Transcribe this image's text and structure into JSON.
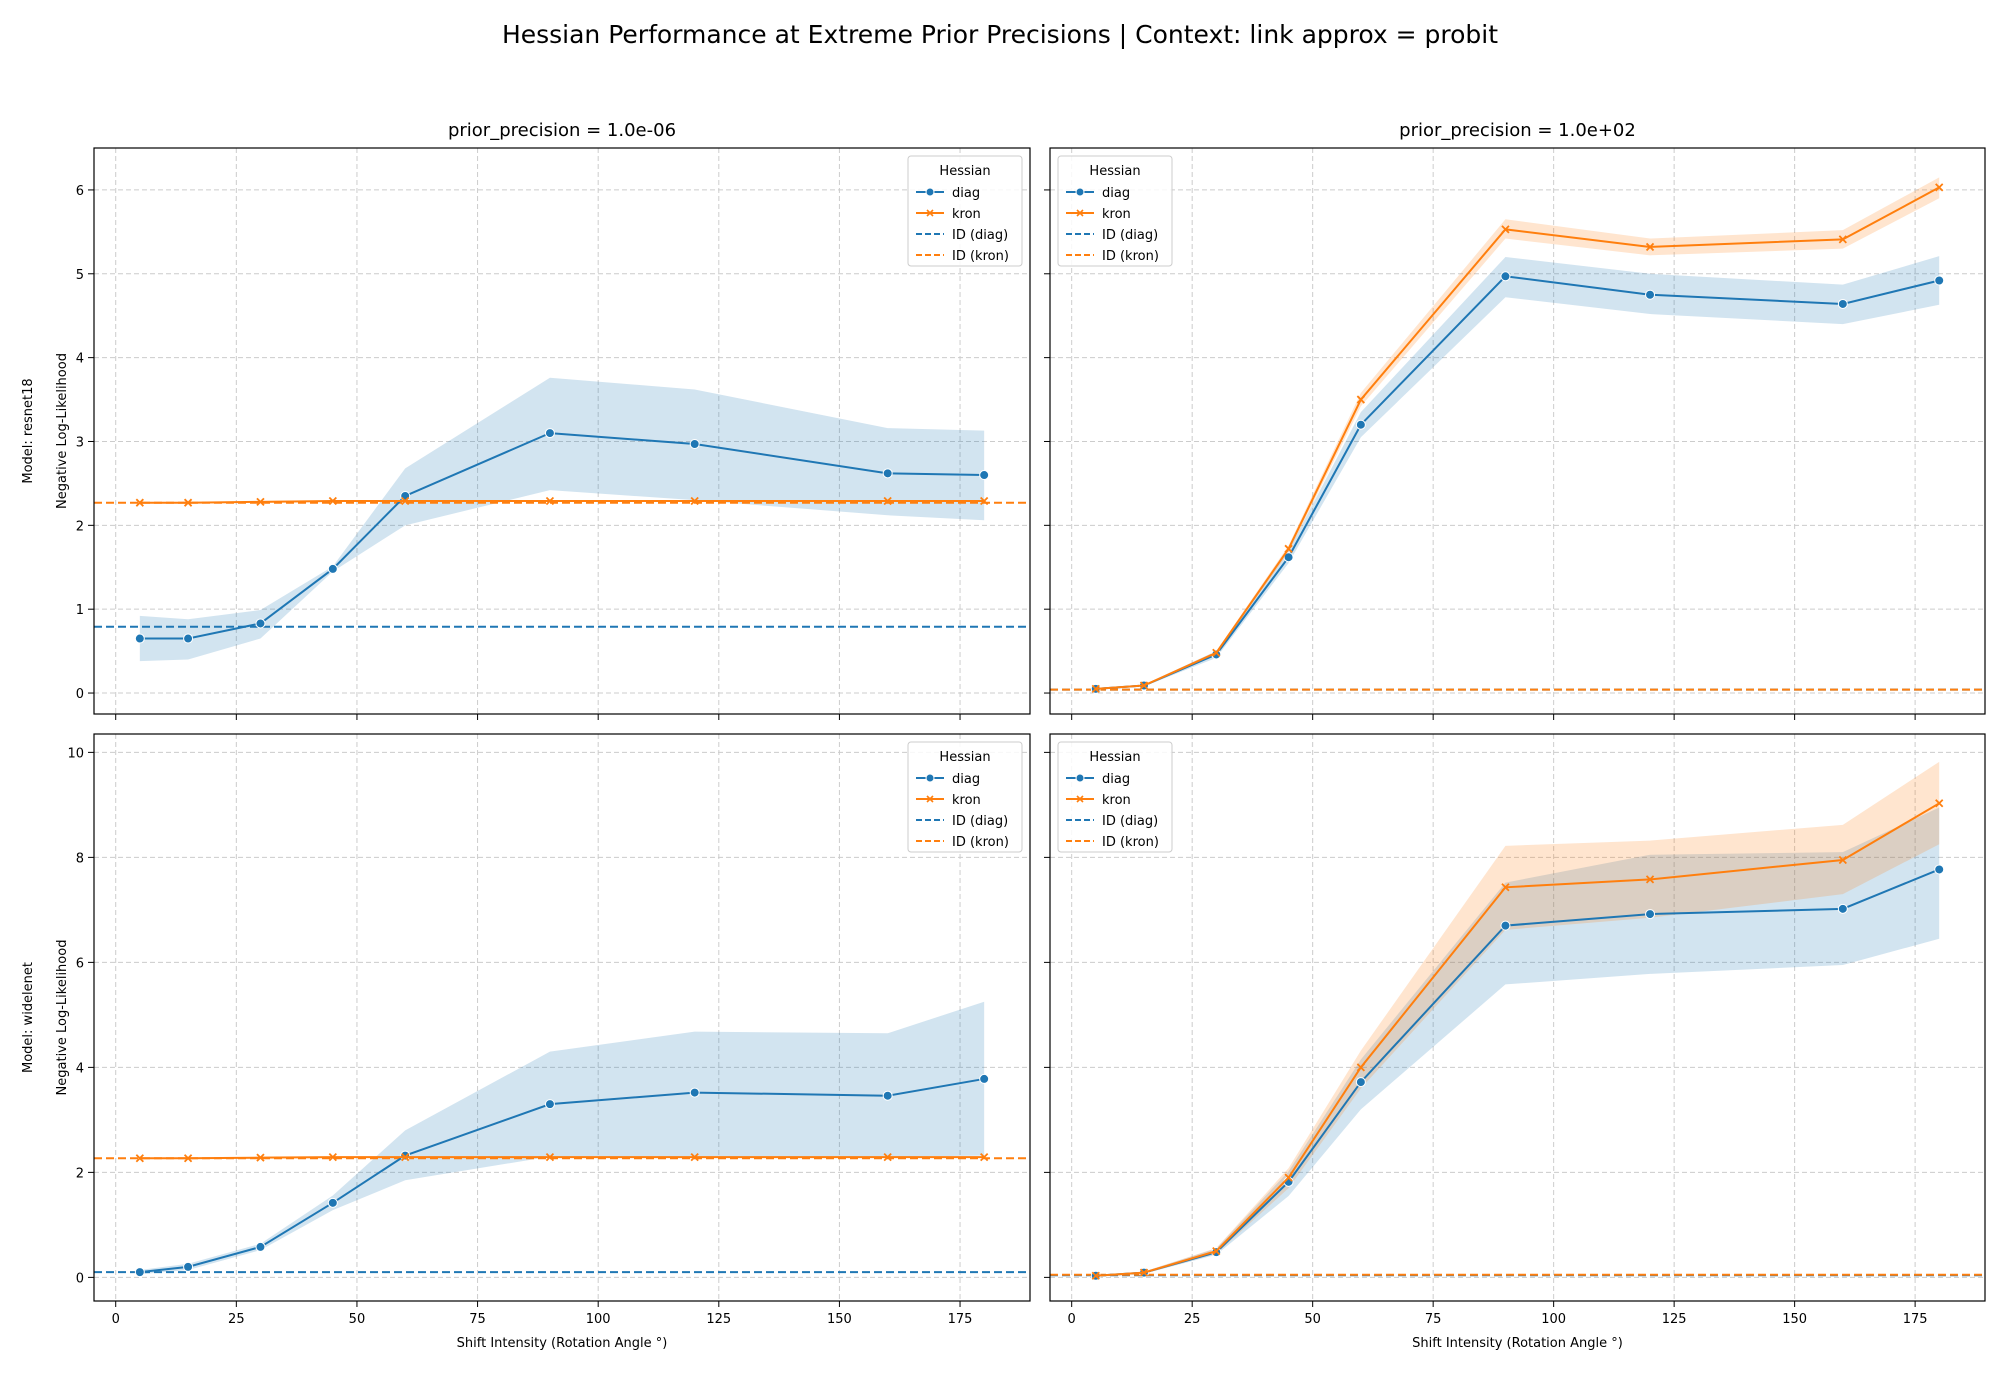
{
  "figure": {
    "title": "Hessian Performance at Extreme Prior Precisions | Context: link approx = probit"
  },
  "colors": {
    "diag": "#1f77b4",
    "kron": "#ff7f0e",
    "grid": "#cccccc",
    "axis": "#000000"
  },
  "chart_data": [
    {
      "type": "line",
      "title": "prior_precision = 1.0e-06",
      "row_label": "Model: resnet18",
      "xlabel": "",
      "ylabel": "Negative Log-Likelihood",
      "xlim": [
        -4.5,
        189.5
      ],
      "ylim": [
        -0.25,
        6.5
      ],
      "xticks": [
        0,
        25,
        50,
        75,
        100,
        125,
        150,
        175
      ],
      "yticks": [
        0,
        1,
        2,
        3,
        4,
        5,
        6
      ],
      "grid": true,
      "legend": {
        "title": "Hessian",
        "placement": "upper right",
        "entries": [
          "diag",
          "kron",
          "ID (diag)",
          "ID (kron)"
        ]
      },
      "x": [
        5,
        15,
        30,
        45,
        60,
        90,
        120,
        160,
        180
      ],
      "series": [
        {
          "name": "diag",
          "marker": "o",
          "values": [
            0.65,
            0.65,
            0.83,
            1.48,
            2.35,
            3.1,
            2.97,
            2.62,
            2.6
          ],
          "ci_low": [
            0.38,
            0.4,
            0.65,
            1.45,
            2.0,
            2.42,
            2.3,
            2.12,
            2.06
          ],
          "ci_high": [
            0.92,
            0.88,
            0.99,
            1.51,
            2.68,
            3.76,
            3.62,
            3.16,
            3.13
          ]
        },
        {
          "name": "kron",
          "marker": "x",
          "values": [
            2.27,
            2.27,
            2.28,
            2.29,
            2.29,
            2.29,
            2.29,
            2.29,
            2.29
          ],
          "ci_low": [
            2.26,
            2.26,
            2.27,
            2.28,
            2.28,
            2.28,
            2.28,
            2.28,
            2.28
          ],
          "ci_high": [
            2.28,
            2.28,
            2.29,
            2.3,
            2.3,
            2.3,
            2.3,
            2.3,
            2.3
          ]
        }
      ],
      "reference_lines": [
        {
          "name": "ID (diag)",
          "value": 0.79
        },
        {
          "name": "ID (kron)",
          "value": 2.27
        }
      ]
    },
    {
      "type": "line",
      "title": "prior_precision = 1.0e+02",
      "xlabel": "",
      "ylabel": "",
      "xlim": [
        -4.5,
        189.5
      ],
      "ylim": [
        -0.25,
        6.5
      ],
      "xticks": [
        0,
        25,
        50,
        75,
        100,
        125,
        150,
        175
      ],
      "yticks": [
        0,
        1,
        2,
        3,
        4,
        5,
        6
      ],
      "grid": true,
      "legend": {
        "title": "Hessian",
        "placement": "upper left",
        "entries": [
          "diag",
          "kron",
          "ID (diag)",
          "ID (kron)"
        ]
      },
      "x": [
        5,
        15,
        30,
        45,
        60,
        90,
        120,
        160,
        180
      ],
      "series": [
        {
          "name": "diag",
          "marker": "o",
          "values": [
            0.05,
            0.09,
            0.46,
            1.62,
            3.2,
            4.97,
            4.75,
            4.64,
            4.92
          ],
          "ci_low": [
            0.04,
            0.08,
            0.42,
            1.55,
            3.05,
            4.72,
            4.52,
            4.4,
            4.63
          ],
          "ci_high": [
            0.06,
            0.1,
            0.5,
            1.7,
            3.35,
            5.2,
            5.0,
            4.87,
            5.21
          ]
        },
        {
          "name": "kron",
          "marker": "x",
          "values": [
            0.05,
            0.09,
            0.48,
            1.72,
            3.5,
            5.53,
            5.32,
            5.41,
            6.03
          ],
          "ci_low": [
            0.04,
            0.08,
            0.46,
            1.68,
            3.42,
            5.42,
            5.22,
            5.3,
            5.9
          ],
          "ci_high": [
            0.06,
            0.1,
            0.5,
            1.76,
            3.58,
            5.65,
            5.42,
            5.52,
            6.15
          ]
        }
      ],
      "reference_lines": [
        {
          "name": "ID (diag)",
          "value": 0.04
        },
        {
          "name": "ID (kron)",
          "value": 0.04
        }
      ]
    },
    {
      "type": "line",
      "title": "",
      "row_label": "Model: widelenet",
      "xlabel": "Shift Intensity (Rotation Angle °)",
      "ylabel": "Negative Log-Likelihood",
      "xlim": [
        -4.5,
        189.5
      ],
      "ylim": [
        -0.45,
        10.35
      ],
      "xticks": [
        0,
        25,
        50,
        75,
        100,
        125,
        150,
        175
      ],
      "yticks": [
        0,
        2,
        4,
        6,
        8,
        10
      ],
      "grid": true,
      "legend": {
        "title": "Hessian",
        "placement": "upper right",
        "entries": [
          "diag",
          "kron",
          "ID (diag)",
          "ID (kron)"
        ]
      },
      "x": [
        5,
        15,
        30,
        45,
        60,
        90,
        120,
        160,
        180
      ],
      "series": [
        {
          "name": "diag",
          "marker": "o",
          "values": [
            0.1,
            0.2,
            0.58,
            1.42,
            2.32,
            3.3,
            3.52,
            3.46,
            3.78
          ],
          "ci_low": [
            0.06,
            0.14,
            0.52,
            1.28,
            1.85,
            2.3,
            2.3,
            2.3,
            2.32
          ],
          "ci_high": [
            0.14,
            0.26,
            0.64,
            1.56,
            2.8,
            4.3,
            4.68,
            4.65,
            5.25
          ]
        },
        {
          "name": "kron",
          "marker": "x",
          "values": [
            2.27,
            2.27,
            2.28,
            2.29,
            2.29,
            2.29,
            2.29,
            2.29,
            2.29
          ],
          "ci_low": [
            2.26,
            2.26,
            2.27,
            2.28,
            2.28,
            2.28,
            2.28,
            2.28,
            2.28
          ],
          "ci_high": [
            2.28,
            2.28,
            2.29,
            2.3,
            2.3,
            2.3,
            2.3,
            2.3,
            2.3
          ]
        }
      ],
      "reference_lines": [
        {
          "name": "ID (diag)",
          "value": 0.1
        },
        {
          "name": "ID (kron)",
          "value": 2.27
        }
      ]
    },
    {
      "type": "line",
      "title": "",
      "xlabel": "Shift Intensity (Rotation Angle °)",
      "ylabel": "",
      "xlim": [
        -4.5,
        189.5
      ],
      "ylim": [
        -0.45,
        10.35
      ],
      "xticks": [
        0,
        25,
        50,
        75,
        100,
        125,
        150,
        175
      ],
      "yticks": [
        0,
        2,
        4,
        6,
        8,
        10
      ],
      "grid": true,
      "legend": {
        "title": "Hessian",
        "placement": "upper left",
        "entries": [
          "diag",
          "kron",
          "ID (diag)",
          "ID (kron)"
        ]
      },
      "x": [
        5,
        15,
        30,
        45,
        60,
        90,
        120,
        160,
        180
      ],
      "series": [
        {
          "name": "diag",
          "marker": "o",
          "values": [
            0.03,
            0.09,
            0.48,
            1.82,
            3.72,
            6.7,
            6.92,
            7.02,
            7.77
          ],
          "ci_low": [
            0.02,
            0.07,
            0.43,
            1.55,
            3.2,
            5.58,
            5.78,
            5.95,
            6.45
          ],
          "ci_high": [
            0.04,
            0.11,
            0.55,
            2.02,
            4.15,
            7.52,
            8.05,
            8.1,
            8.95
          ]
        },
        {
          "name": "kron",
          "marker": "x",
          "values": [
            0.03,
            0.09,
            0.5,
            1.9,
            4.0,
            7.43,
            7.58,
            7.95,
            9.03
          ],
          "ci_low": [
            0.02,
            0.07,
            0.45,
            1.7,
            3.6,
            6.62,
            6.85,
            7.3,
            8.25
          ],
          "ci_high": [
            0.04,
            0.11,
            0.56,
            2.08,
            4.32,
            8.22,
            8.32,
            8.62,
            9.82
          ]
        }
      ],
      "reference_lines": [
        {
          "name": "ID (diag)",
          "value": 0.04
        },
        {
          "name": "ID (kron)",
          "value": 0.05
        }
      ]
    }
  ]
}
